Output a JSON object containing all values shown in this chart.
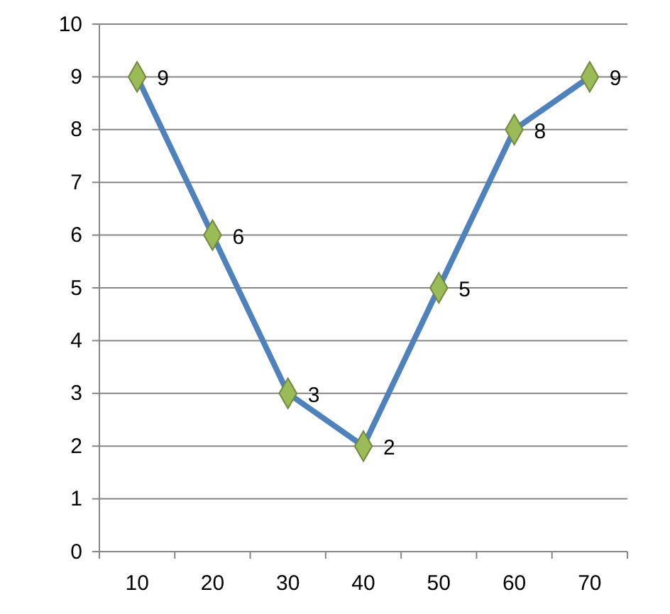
{
  "chart_data": {
    "type": "line",
    "categories": [
      "10",
      "20",
      "30",
      "40",
      "50",
      "60",
      "70"
    ],
    "series": [
      {
        "color": "#4f81bd",
        "values": [
          9,
          6,
          3,
          2,
          5,
          8,
          9
        ]
      }
    ],
    "ylim": [
      0,
      10
    ],
    "yticks": [
      0,
      1,
      2,
      3,
      4,
      5,
      6,
      7,
      8,
      9,
      10
    ],
    "grid": "y",
    "marker": "diamond",
    "data_labels": true
  }
}
